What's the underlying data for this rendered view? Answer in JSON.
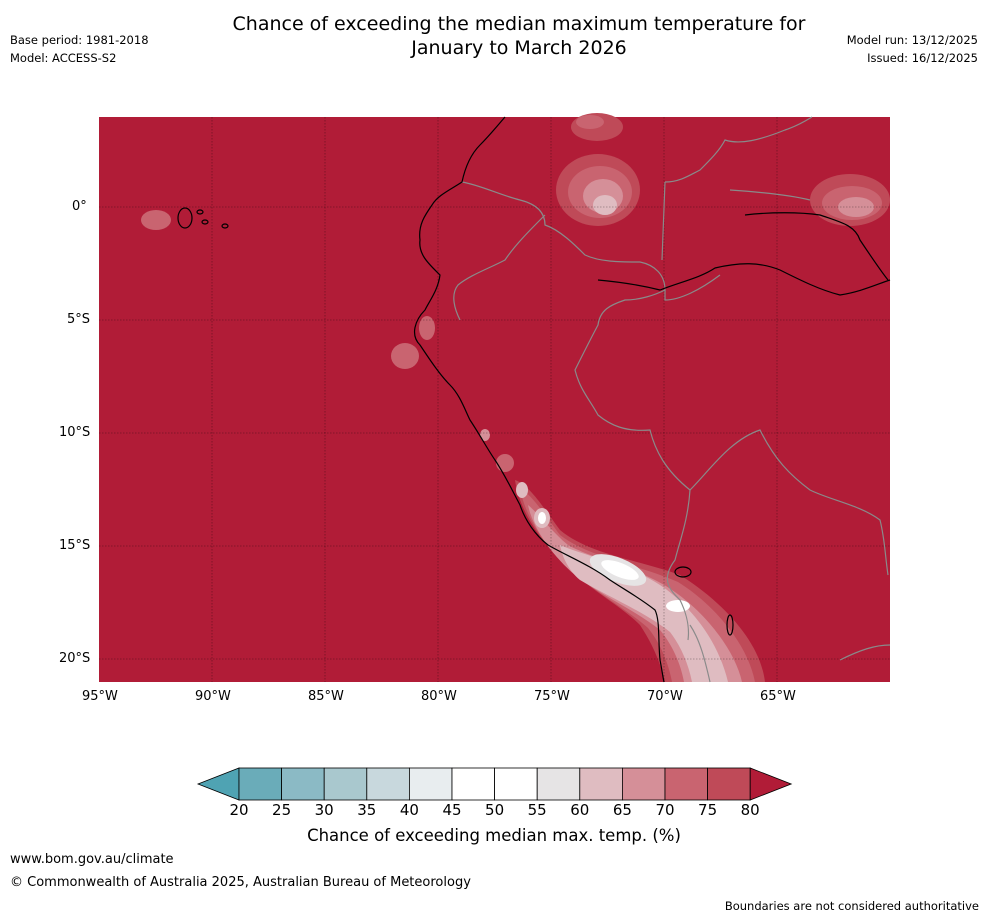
{
  "title_line1": "Chance of exceeding the median maximum temperature for",
  "title_line2": "January to March 2026",
  "meta_left": {
    "base_period": "Base period: 1981-2018",
    "model": "Model: ACCESS-S2"
  },
  "meta_right": {
    "model_run": "Model run: 13/12/2025",
    "issued": "Issued: 16/12/2025"
  },
  "map": {
    "lat_labels": [
      "0°",
      "5°S",
      "10°S",
      "15°S",
      "20°S"
    ],
    "lon_labels": [
      "95°W",
      "90°W",
      "85°W",
      "80°W",
      "75°W",
      "70°W",
      "65°W"
    ],
    "background_color": "#b11c37"
  },
  "colorbar": {
    "title": "Chance of exceeding median max. temp. (%)",
    "ticks": [
      "20",
      "25",
      "30",
      "35",
      "40",
      "45",
      "50",
      "55",
      "60",
      "65",
      "70",
      "75",
      "80"
    ],
    "colors": [
      "#4fa3b3",
      "#6aacb9",
      "#8bbac5",
      "#a9c8ce",
      "#c8d8dd",
      "#e8edef",
      "#ffffff",
      "#ffffff",
      "#e6e4e5",
      "#dfbcc1",
      "#d58f98",
      "#c96470",
      "#bf4a58",
      "#b11c37"
    ]
  },
  "footer": {
    "url": "www.bom.gov.au/climate",
    "copyright": "© Commonwealth of Australia 2025, Australian Bureau of Meteorology",
    "note": "Boundaries are not considered authoritative"
  }
}
